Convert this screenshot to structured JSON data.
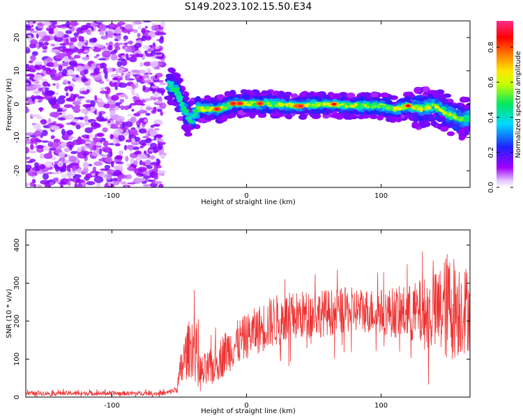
{
  "title": "S149.2023.102.15.50.E34",
  "colors": {
    "snr_line": "#ee3333",
    "spectrum_cmap": "rainbow-pink-to-white"
  },
  "chart_data": [
    {
      "type": "heatmap",
      "xlabel": "Height of straight line (km)",
      "ylabel": "Frequency (Hz)",
      "xlim": [
        -164,
        166
      ],
      "ylim": [
        -25,
        25
      ],
      "x_ticks": [
        -100,
        0,
        100
      ],
      "y_ticks": [
        -20,
        -10,
        0,
        10,
        20
      ],
      "colorbar": {
        "label": "Normalized spectral amplitude",
        "range": [
          0.0,
          0.95
        ],
        "ticks": [
          0.0,
          0.2,
          0.4,
          0.6,
          0.8
        ]
      },
      "noise_region": {
        "x_range": [
          -164,
          -62
        ],
        "level": 0.1
      },
      "ridge": {
        "description_points": [
          {
            "x": -58,
            "y": 6.5
          },
          {
            "x": -52,
            "y": 4
          },
          {
            "x": -46,
            "y": -2
          },
          {
            "x": -42,
            "y": -5
          },
          {
            "x": -36,
            "y": -1.5
          },
          {
            "x": -20,
            "y": -1.5
          },
          {
            "x": -10,
            "y": 0.2
          },
          {
            "x": 0,
            "y": 0.2
          },
          {
            "x": 20,
            "y": 0
          },
          {
            "x": 40,
            "y": -0.5
          },
          {
            "x": 60,
            "y": 0
          },
          {
            "x": 80,
            "y": -0.5
          },
          {
            "x": 100,
            "y": -0.5
          },
          {
            "x": 110,
            "y": -1.5
          },
          {
            "x": 120,
            "y": -0.5
          },
          {
            "x": 130,
            "y": -1.5
          },
          {
            "x": 140,
            "y": -0.5
          },
          {
            "x": 150,
            "y": -3
          },
          {
            "x": 160,
            "y": -4.5
          },
          {
            "x": 166,
            "y": -4
          }
        ]
      },
      "peaks": [
        {
          "x": -22,
          "y": -1.5,
          "amplitude": 0.95
        },
        {
          "x": -10,
          "y": 0.2,
          "amplitude": 0.95
        },
        {
          "x": -5,
          "y": 0.2,
          "amplitude": 0.95
        },
        {
          "x": 10,
          "y": 0.2,
          "amplitude": 0.95
        },
        {
          "x": 38,
          "y": -0.6,
          "amplitude": 0.95
        },
        {
          "x": 40,
          "y": -0.6,
          "amplitude": 0.95
        },
        {
          "x": 65,
          "y": 0,
          "amplitude": 0.9
        },
        {
          "x": 120,
          "y": -0.5,
          "amplitude": 0.9
        }
      ]
    },
    {
      "type": "line",
      "xlabel": "Height of straight line (km)",
      "ylabel": "SNR (10 * v/v)",
      "xlim": [
        -164,
        166
      ],
      "ylim": [
        0,
        440
      ],
      "x_ticks": [
        -100,
        0,
        100
      ],
      "y_ticks": [
        0,
        100,
        200,
        300,
        400
      ],
      "series": [
        {
          "envelope": [
            {
              "x": -164,
              "mean": 10,
              "spread": 6
            },
            {
              "x": -60,
              "mean": 10,
              "spread": 6
            },
            {
              "x": -52,
              "mean": 20,
              "spread": 10
            },
            {
              "x": -48,
              "mean": 80,
              "spread": 60
            },
            {
              "x": -44,
              "mean": 120,
              "spread": 70
            },
            {
              "x": -40,
              "mean": 140,
              "spread": 90
            },
            {
              "x": -34,
              "mean": 60,
              "spread": 50
            },
            {
              "x": -25,
              "mean": 80,
              "spread": 50
            },
            {
              "x": -15,
              "mean": 120,
              "spread": 60
            },
            {
              "x": 0,
              "mean": 160,
              "spread": 60
            },
            {
              "x": 20,
              "mean": 200,
              "spread": 70
            },
            {
              "x": 40,
              "mean": 215,
              "spread": 65
            },
            {
              "x": 80,
              "mean": 230,
              "spread": 60
            },
            {
              "x": 100,
              "mean": 225,
              "spread": 60
            },
            {
              "x": 120,
              "mean": 220,
              "spread": 75
            },
            {
              "x": 140,
              "mean": 220,
              "spread": 110
            },
            {
              "x": 150,
              "mean": 240,
              "spread": 150
            },
            {
              "x": 166,
              "mean": 230,
              "spread": 110
            }
          ]
        }
      ]
    }
  ]
}
